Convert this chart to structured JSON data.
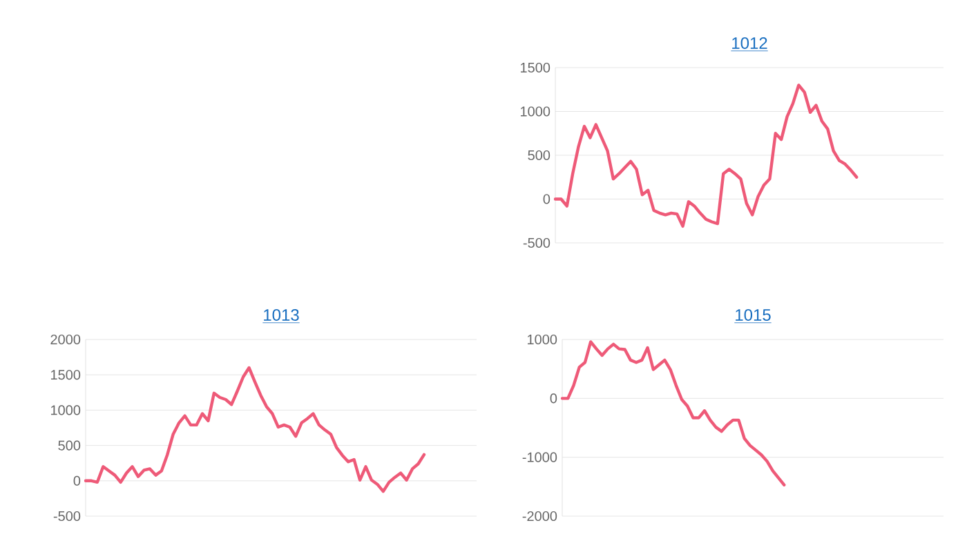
{
  "chart_data": [
    {
      "type": "line",
      "title": "1012",
      "color": "#ee5a78",
      "grid": "y",
      "tick_labels": "y",
      "ylim": [
        -500,
        1500
      ],
      "yticks": [
        -500,
        0,
        500,
        1000,
        1500
      ],
      "categories": [
        null,
        null,
        null,
        null,
        null,
        null,
        null,
        null,
        null,
        null,
        null,
        null,
        null,
        null,
        null,
        null,
        null,
        null,
        null,
        null,
        null,
        null,
        null,
        null,
        null,
        null,
        null,
        null,
        null,
        null,
        null,
        null,
        null,
        null,
        null,
        null,
        null,
        null,
        null,
        null,
        null,
        null,
        null,
        null,
        null,
        null,
        null,
        null,
        null,
        null,
        null,
        null,
        null,
        null,
        null,
        null,
        null,
        null,
        null,
        null,
        null,
        null,
        null,
        null,
        null,
        null,
        null,
        null
      ],
      "values": [
        0,
        0,
        -80,
        290,
        600,
        830,
        700,
        850,
        700,
        550,
        230,
        290,
        360,
        430,
        340,
        50,
        100,
        -130,
        -160,
        -180,
        -160,
        -170,
        -310,
        -30,
        -80,
        -160,
        -230,
        -260,
        -280,
        290,
        340,
        290,
        230,
        -50,
        -180,
        30,
        160,
        230,
        750,
        680,
        940,
        1090,
        1300,
        1220,
        990,
        1070,
        890,
        800,
        550,
        440,
        400,
        330,
        250,
        null,
        null,
        null,
        null,
        null,
        null,
        null,
        null,
        null,
        null,
        null,
        null,
        null,
        null,
        null
      ]
    },
    {
      "type": "line",
      "title": "1013",
      "color": "#ee5a78",
      "grid": "y",
      "tick_labels": "y",
      "ylim": [
        -500,
        2000
      ],
      "yticks": [
        -500,
        0,
        500,
        1000,
        1500,
        2000
      ],
      "categories": [
        null,
        null,
        null,
        null,
        null,
        null,
        null,
        null,
        null,
        null,
        null,
        null,
        null,
        null,
        null,
        null,
        null,
        null,
        null,
        null,
        null,
        null,
        null,
        null,
        null,
        null,
        null,
        null,
        null,
        null,
        null,
        null,
        null,
        null,
        null,
        null,
        null,
        null,
        null,
        null,
        null,
        null,
        null,
        null,
        null,
        null,
        null,
        null,
        null,
        null,
        null,
        null,
        null,
        null,
        null,
        null,
        null,
        null,
        null,
        null,
        null,
        null,
        null,
        null,
        null,
        null,
        null,
        null
      ],
      "values": [
        0,
        0,
        -20,
        200,
        140,
        80,
        -20,
        110,
        200,
        60,
        150,
        170,
        80,
        140,
        370,
        660,
        820,
        920,
        790,
        790,
        950,
        850,
        1240,
        1180,
        1150,
        1080,
        1270,
        1470,
        1600,
        1400,
        1210,
        1050,
        950,
        760,
        790,
        760,
        630,
        820,
        880,
        950,
        790,
        720,
        660,
        470,
        360,
        270,
        300,
        10,
        200,
        10,
        -50,
        -150,
        -20,
        50,
        110,
        10,
        170,
        240,
        370,
        null,
        null,
        null,
        null,
        null,
        null,
        null,
        null,
        null
      ]
    },
    {
      "type": "line",
      "title": "1015",
      "color": "#ee5a78",
      "grid": "y",
      "tick_labels": "y",
      "ylim": [
        -2000,
        1000
      ],
      "yticks": [
        -2000,
        -1000,
        0,
        1000
      ],
      "categories": [
        null,
        null,
        null,
        null,
        null,
        null,
        null,
        null,
        null,
        null,
        null,
        null,
        null,
        null,
        null,
        null,
        null,
        null,
        null,
        null,
        null,
        null,
        null,
        null,
        null,
        null,
        null,
        null,
        null,
        null,
        null,
        null,
        null,
        null,
        null,
        null,
        null,
        null,
        null,
        null,
        null,
        null,
        null,
        null,
        null,
        null,
        null,
        null,
        null,
        null,
        null,
        null,
        null,
        null,
        null,
        null,
        null,
        null,
        null,
        null,
        null,
        null,
        null,
        null,
        null,
        null,
        null,
        null
      ],
      "values": [
        0,
        0,
        220,
        530,
        610,
        960,
        840,
        730,
        840,
        920,
        840,
        830,
        650,
        610,
        650,
        860,
        490,
        570,
        650,
        490,
        220,
        -20,
        -130,
        -330,
        -330,
        -210,
        -370,
        -490,
        -560,
        -450,
        -370,
        -370,
        -680,
        -800,
        -880,
        -960,
        -1070,
        -1230,
        -1350,
        -1470,
        null,
        null,
        null,
        null,
        null,
        null,
        null,
        null,
        null,
        null,
        null,
        null,
        null,
        null,
        null,
        null,
        null,
        null,
        null,
        null,
        null,
        null,
        null,
        null,
        null,
        null,
        null,
        null
      ]
    }
  ]
}
